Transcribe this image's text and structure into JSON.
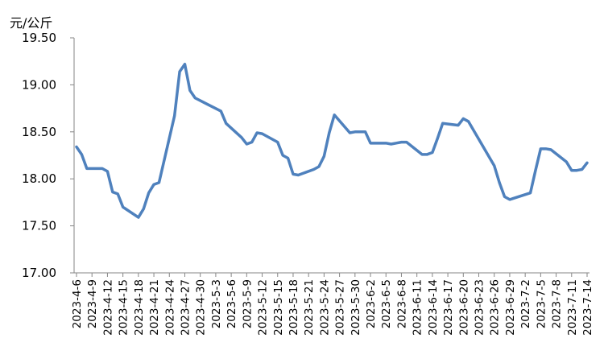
{
  "chart_data": {
    "type": "line",
    "unit_label": "元/公斤",
    "title": "",
    "xlabel": "",
    "ylabel": "",
    "ylim": [
      17.0,
      19.5
    ],
    "yticks": [
      "17.00",
      "17.50",
      "18.00",
      "18.50",
      "19.00",
      "19.50"
    ],
    "xticks": [
      "2023-4-6",
      "2023-4-9",
      "2023-4-12",
      "2023-4-15",
      "2023-4-18",
      "2023-4-21",
      "2023-4-24",
      "2023-4-27",
      "2023-4-30",
      "2023-5-3",
      "2023-5-6",
      "2023-5-9",
      "2023-5-12",
      "2023-5-15",
      "2023-5-18",
      "2023-5-21",
      "2023-5-24",
      "2023-5-27",
      "2023-5-30",
      "2023-6-2",
      "2023-6-5",
      "2023-6-8",
      "2023-6-11",
      "2023-6-14",
      "2023-6-17",
      "2023-6-20",
      "2023-6-23",
      "2023-6-26",
      "2023-6-29",
      "2023-7-2",
      "2023-7-5",
      "2023-7-8",
      "2023-7-11",
      "2023-7-14"
    ],
    "grid": false,
    "legend": "none",
    "line_color": "#4F81BD",
    "series": [
      {
        "x": [
          "2023-4-6",
          "2023-4-7",
          "2023-4-8",
          "2023-4-9",
          "2023-4-10",
          "2023-4-11",
          "2023-4-12",
          "2023-4-13",
          "2023-4-14",
          "2023-4-15",
          "2023-4-18",
          "2023-4-19",
          "2023-4-20",
          "2023-4-21",
          "2023-4-22",
          "2023-4-25",
          "2023-4-26",
          "2023-4-27",
          "2023-4-28",
          "2023-4-29",
          "2023-5-4",
          "2023-5-5",
          "2023-5-8",
          "2023-5-9",
          "2023-5-10",
          "2023-5-11",
          "2023-5-12",
          "2023-5-15",
          "2023-5-16",
          "2023-5-17",
          "2023-5-18",
          "2023-5-19",
          "2023-5-22",
          "2023-5-23",
          "2023-5-24",
          "2023-5-25",
          "2023-5-26",
          "2023-5-29",
          "2023-5-30",
          "2023-5-31",
          "2023-6-1",
          "2023-6-2",
          "2023-6-5",
          "2023-6-6",
          "2023-6-7",
          "2023-6-8",
          "2023-6-9",
          "2023-6-12",
          "2023-6-13",
          "2023-6-14",
          "2023-6-15",
          "2023-6-16",
          "2023-6-19",
          "2023-6-20",
          "2023-6-21",
          "2023-6-26",
          "2023-6-27",
          "2023-6-28",
          "2023-6-29",
          "2023-7-3",
          "2023-7-4",
          "2023-7-5",
          "2023-7-6",
          "2023-7-7",
          "2023-7-10",
          "2023-7-11",
          "2023-7-12",
          "2023-7-13",
          "2023-7-14"
        ],
        "values": [
          18.34,
          18.26,
          18.11,
          18.11,
          18.11,
          18.11,
          18.08,
          17.86,
          17.84,
          17.7,
          17.59,
          17.68,
          17.85,
          17.94,
          17.96,
          18.67,
          19.14,
          19.22,
          18.94,
          18.86,
          18.72,
          18.59,
          18.44,
          18.37,
          18.39,
          18.49,
          18.48,
          18.39,
          18.25,
          18.22,
          18.05,
          18.04,
          18.1,
          18.13,
          18.24,
          18.49,
          18.68,
          18.49,
          18.5,
          18.5,
          18.5,
          18.38,
          18.38,
          18.37,
          18.38,
          18.39,
          18.39,
          18.26,
          18.26,
          18.28,
          18.43,
          18.59,
          18.57,
          18.64,
          18.61,
          18.14,
          17.96,
          17.81,
          17.78,
          17.85,
          18.09,
          18.32,
          18.32,
          18.31,
          18.18,
          18.09,
          18.09,
          18.1,
          18.17
        ]
      }
    ]
  }
}
